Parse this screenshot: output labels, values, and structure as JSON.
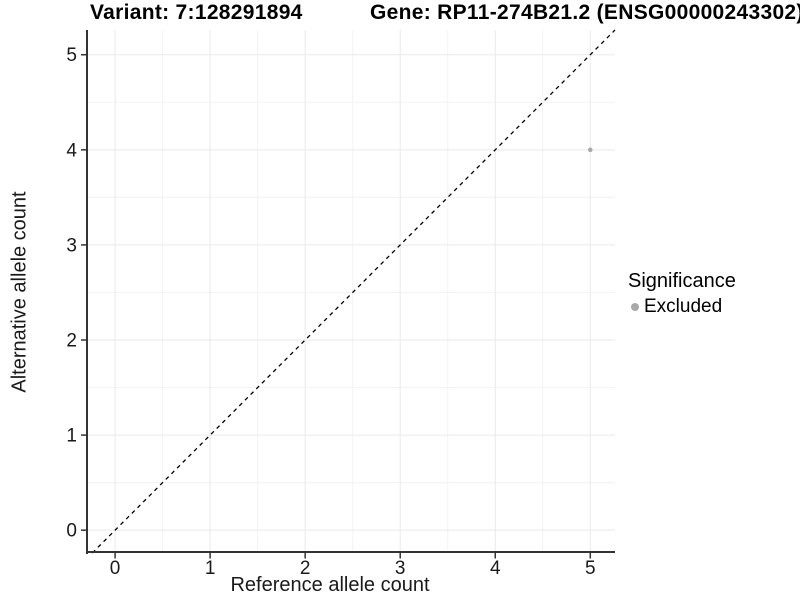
{
  "chart_data": {
    "type": "scatter",
    "title_left": "Variant: 7:128291894",
    "title_right": "Gene: RP11-274B21.2 (ENSG00000243302)",
    "xlabel": "Reference allele count",
    "ylabel": "Alternative allele count",
    "x_ticks": [
      0,
      1,
      2,
      3,
      4,
      5
    ],
    "y_ticks": [
      0,
      1,
      2,
      3,
      4,
      5
    ],
    "xlim": [
      -0.285,
      5.26
    ],
    "ylim": [
      -0.24,
      5.26
    ],
    "grid": {
      "major": true,
      "minor": true
    },
    "identity_line": {
      "slope": 1,
      "intercept": 0,
      "style": "dashed",
      "color": "#000000"
    },
    "points": [
      {
        "x": 5,
        "y": 4,
        "significance": "Excluded",
        "color": "#aaaaaa",
        "radius": 2.3
      }
    ],
    "legend": {
      "title": "Significance",
      "position": "right",
      "items": [
        {
          "label": "Excluded",
          "color": "#a9a9a9",
          "marker": "circle"
        }
      ]
    },
    "colors": {
      "background": "#ffffff",
      "grid_major": "#e9e9e9",
      "grid_minor": "#f3f3f3",
      "axis_line": "#333333",
      "tick_mark": "#333333",
      "tick_label": "#1a1a1a",
      "title": "#000000"
    }
  }
}
